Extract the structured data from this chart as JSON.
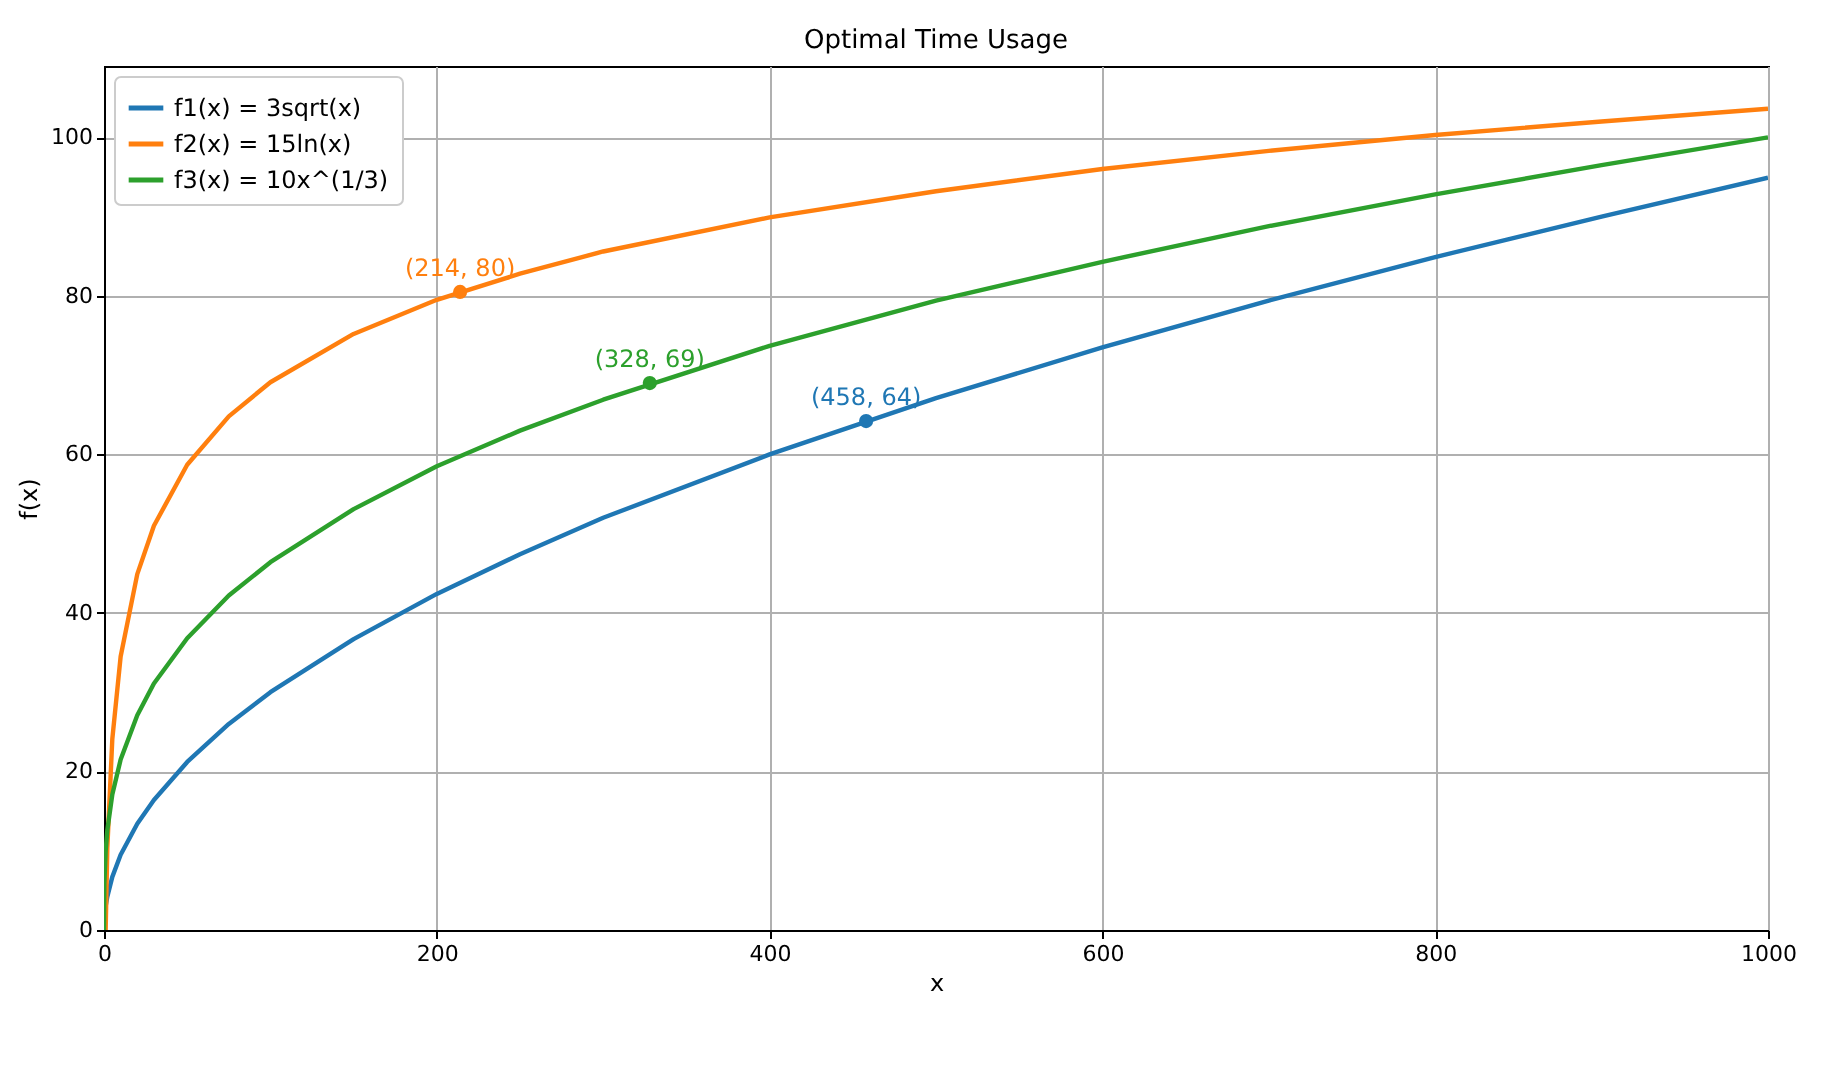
{
  "chart_data": {
    "type": "line",
    "title": "Optimal Time Usage",
    "xlabel": "x",
    "ylabel": "f(x)",
    "xlim": [
      0,
      1000
    ],
    "xticks": [
      0,
      200,
      400,
      600,
      800,
      1000
    ],
    "ylim": [
      0,
      109
    ],
    "yticks": [
      0,
      20,
      40,
      60,
      80,
      100
    ],
    "grid": true,
    "legend": "top left",
    "series": [
      {
        "name": "f1(x) = 3sqrt(x)",
        "color": "#1f77b4",
        "x": [
          0,
          1,
          2,
          5,
          10,
          20,
          30,
          50,
          75,
          100,
          150,
          200,
          250,
          300,
          400,
          500,
          600,
          700,
          800,
          900,
          1000
        ],
        "values": [
          0,
          3,
          4.2,
          6.7,
          9.5,
          13.4,
          16.4,
          21.2,
          26,
          30,
          36.7,
          42.4,
          47.4,
          52,
          60,
          67.1,
          73.5,
          79.4,
          84.9,
          90,
          94.9
        ]
      },
      {
        "name": "f2(x) = 15ln(x)",
        "color": "#ff7f0e",
        "x": [
          1,
          2,
          5,
          10,
          20,
          30,
          50,
          75,
          100,
          150,
          200,
          250,
          300,
          400,
          500,
          600,
          700,
          800,
          900,
          1000
        ],
        "values": [
          0,
          10.4,
          24.1,
          34.5,
          44.9,
          51,
          58.7,
          64.8,
          69.1,
          75.2,
          79.5,
          82.8,
          85.6,
          89.9,
          93.2,
          96,
          98.3,
          100.3,
          102,
          103.6
        ]
      },
      {
        "name": "f3(x) = 10x^(1/3)",
        "color": "#2ca02c",
        "x": [
          0,
          0.2,
          1,
          2,
          5,
          10,
          20,
          30,
          50,
          75,
          100,
          150,
          200,
          250,
          300,
          400,
          500,
          600,
          700,
          800,
          900,
          1000
        ],
        "values": [
          0,
          5.8,
          10,
          12.6,
          17.1,
          21.5,
          27.1,
          31.1,
          36.8,
          42.2,
          46.4,
          53.1,
          58.5,
          63,
          66.9,
          73.7,
          79.4,
          84.3,
          88.8,
          92.8,
          96.5,
          100
        ]
      },
      {
        "type": "scatter",
        "color": "#ff7f0e",
        "x": [
          214
        ],
        "values": [
          80.5
        ],
        "value_labels": [
          "(214, 80)"
        ]
      },
      {
        "type": "scatter",
        "color": "#2ca02c",
        "x": [
          328
        ],
        "values": [
          69
        ],
        "value_labels": [
          "(328, 69)"
        ]
      },
      {
        "type": "scatter",
        "color": "#1f77b4",
        "x": [
          458
        ],
        "values": [
          64.2
        ],
        "value_labels": [
          "(458, 64)"
        ]
      }
    ]
  }
}
